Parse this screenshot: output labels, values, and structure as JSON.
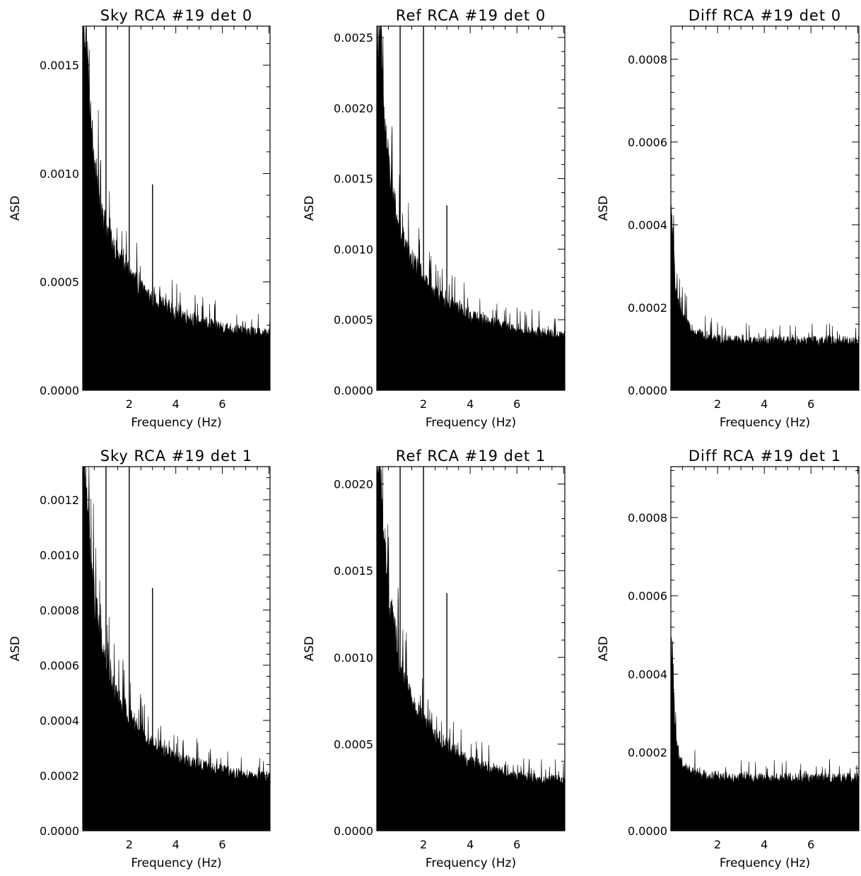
{
  "figure": {
    "background": "#ffffff",
    "ink": "#000000"
  },
  "chart_data": [
    {
      "type": "bar",
      "title": "Sky RCA #19 det 0",
      "xlabel": "Frequency (Hz)",
      "ylabel": "ASD",
      "xlim": [
        0,
        8.05
      ],
      "ylim": [
        0,
        0.00168
      ],
      "xticks": [
        2,
        4,
        6
      ],
      "xtick_labels": [
        "2",
        "4",
        "6"
      ],
      "yticks": [
        0,
        0.0005,
        0.001,
        0.0015
      ],
      "ytick_labels": [
        "0.0000",
        "0.0005",
        "0.0010",
        "0.0015"
      ],
      "x": [
        0.05,
        0.15,
        0.3,
        0.5,
        0.75,
        1.0,
        1.5,
        2.0,
        2.5,
        3.0,
        3.5,
        4.0,
        4.5,
        5.0,
        5.5,
        6.0,
        6.5,
        7.0,
        7.5,
        8.0
      ],
      "y": [
        0.00168,
        0.00168,
        0.00128,
        0.00105,
        0.00088,
        0.00075,
        0.00062,
        0.00054,
        0.00047,
        0.00042,
        0.00039,
        0.00036,
        0.00034,
        0.00032,
        0.000305,
        0.00029,
        0.00028,
        0.00027,
        0.000265,
        0.00026
      ],
      "spikes": [
        {
          "x": 1.0,
          "y": 0.00168
        },
        {
          "x": 2.0,
          "y": 0.00168
        },
        {
          "x": 3.0,
          "y": 0.00095
        }
      ]
    },
    {
      "type": "bar",
      "title": "Ref RCA #19 det 0",
      "xlabel": "Frequency (Hz)",
      "ylabel": "ASD",
      "xlim": [
        0,
        8.05
      ],
      "ylim": [
        0,
        0.00258
      ],
      "xticks": [
        2,
        4,
        6
      ],
      "xtick_labels": [
        "2",
        "4",
        "6"
      ],
      "yticks": [
        0,
        0.0005,
        0.001,
        0.0015,
        0.002,
        0.0025
      ],
      "ytick_labels": [
        "0.0000",
        "0.0005",
        "0.0010",
        "0.0015",
        "0.0020",
        "0.0025"
      ],
      "x": [
        0.05,
        0.15,
        0.3,
        0.5,
        0.75,
        1.0,
        1.5,
        2.0,
        2.5,
        3.0,
        3.5,
        4.0,
        4.5,
        5.0,
        5.5,
        6.0,
        6.5,
        7.0,
        7.5,
        8.0
      ],
      "y": [
        0.00258,
        0.00258,
        0.00195,
        0.0016,
        0.00132,
        0.00112,
        0.00092,
        0.0008,
        0.0007,
        0.00063,
        0.00058,
        0.00053,
        0.0005,
        0.00047,
        0.00045,
        0.00043,
        0.00042,
        0.00041,
        0.0004,
        0.00039
      ],
      "spikes": [
        {
          "x": 1.0,
          "y": 0.00258
        },
        {
          "x": 2.0,
          "y": 0.00258
        },
        {
          "x": 3.0,
          "y": 0.00131
        }
      ]
    },
    {
      "type": "bar",
      "title": "Diff RCA #19 det 0",
      "xlabel": "Frequency (Hz)",
      "ylabel": "ASD",
      "xlim": [
        0,
        8.05
      ],
      "ylim": [
        0,
        0.00088
      ],
      "xticks": [
        2,
        4,
        6
      ],
      "xtick_labels": [
        "2",
        "4",
        "6"
      ],
      "yticks": [
        0,
        0.0002,
        0.0004,
        0.0006,
        0.0008
      ],
      "ytick_labels": [
        "0.0000",
        "0.0002",
        "0.0004",
        "0.0006",
        "0.0008"
      ],
      "x": [
        0.05,
        0.1,
        0.2,
        0.35,
        0.5,
        0.75,
        1.0,
        1.5,
        2.0,
        3.0,
        4.0,
        5.0,
        6.0,
        7.0,
        8.0
      ],
      "y": [
        0.00042,
        0.00035,
        0.00026,
        0.0002,
        0.00018,
        0.00016,
        0.000145,
        0.00013,
        0.000125,
        0.00012,
        0.00012,
        0.00012,
        0.00012,
        0.00012,
        0.00012
      ],
      "spikes": []
    },
    {
      "type": "bar",
      "title": "Sky RCA #19 det 1",
      "xlabel": "Frequency (Hz)",
      "ylabel": "ASD",
      "xlim": [
        0,
        8.05
      ],
      "ylim": [
        0,
        0.00132
      ],
      "xticks": [
        2,
        4,
        6
      ],
      "xtick_labels": [
        "2",
        "4",
        "6"
      ],
      "yticks": [
        0,
        0.0002,
        0.0004,
        0.0006,
        0.0008,
        0.001,
        0.0012
      ],
      "ytick_labels": [
        "0.0000",
        "0.0002",
        "0.0004",
        "0.0006",
        "0.0008",
        "0.0010",
        "0.0012"
      ],
      "x": [
        0.05,
        0.15,
        0.3,
        0.5,
        0.75,
        1.0,
        1.5,
        2.0,
        2.5,
        3.0,
        3.5,
        4.0,
        4.5,
        5.0,
        5.5,
        6.0,
        6.5,
        7.0,
        7.5,
        8.0
      ],
      "y": [
        0.00132,
        0.00132,
        0.00105,
        0.00085,
        0.0007,
        0.0006,
        0.00048,
        0.00042,
        0.00036,
        0.00032,
        0.00029,
        0.00027,
        0.00025,
        0.00024,
        0.00023,
        0.00022,
        0.00021,
        0.000205,
        0.0002,
        0.0002
      ],
      "spikes": [
        {
          "x": 1.0,
          "y": 0.00132
        },
        {
          "x": 2.0,
          "y": 0.00132
        },
        {
          "x": 3.0,
          "y": 0.00088
        }
      ]
    },
    {
      "type": "bar",
      "title": "Ref RCA #19 det 1",
      "xlabel": "Frequency (Hz)",
      "ylabel": "ASD",
      "xlim": [
        0,
        8.05
      ],
      "ylim": [
        0,
        0.0021
      ],
      "xticks": [
        2,
        4,
        6
      ],
      "xtick_labels": [
        "2",
        "4",
        "6"
      ],
      "yticks": [
        0,
        0.0005,
        0.001,
        0.0015,
        0.002
      ],
      "ytick_labels": [
        "0.0000",
        "0.0005",
        "0.0010",
        "0.0015",
        "0.0020"
      ],
      "x": [
        0.05,
        0.15,
        0.3,
        0.5,
        0.75,
        1.0,
        1.5,
        2.0,
        2.5,
        3.0,
        3.5,
        4.0,
        4.5,
        5.0,
        5.5,
        6.0,
        6.5,
        7.0,
        7.5,
        8.0
      ],
      "y": [
        0.0021,
        0.0021,
        0.0017,
        0.00138,
        0.00115,
        0.00095,
        0.00076,
        0.00065,
        0.00055,
        0.00049,
        0.00044,
        0.0004,
        0.00038,
        0.00036,
        0.00034,
        0.00032,
        0.00031,
        0.0003,
        0.0003,
        0.00029
      ],
      "spikes": [
        {
          "x": 1.0,
          "y": 0.0021
        },
        {
          "x": 2.0,
          "y": 0.0021
        },
        {
          "x": 3.0,
          "y": 0.00137
        }
      ]
    },
    {
      "type": "bar",
      "title": "Diff RCA #19 det 1",
      "xlabel": "Frequency (Hz)",
      "ylabel": "ASD",
      "xlim": [
        0,
        8.05
      ],
      "ylim": [
        0,
        0.00093
      ],
      "xticks": [
        2,
        4,
        6
      ],
      "xtick_labels": [
        "2",
        "4",
        "6"
      ],
      "yticks": [
        0,
        0.0002,
        0.0004,
        0.0006,
        0.0008
      ],
      "ytick_labels": [
        "0.0000",
        "0.0002",
        "0.0004",
        "0.0006",
        "0.0008"
      ],
      "x": [
        0.05,
        0.1,
        0.2,
        0.35,
        0.5,
        0.75,
        1.0,
        1.5,
        2.0,
        3.0,
        4.0,
        5.0,
        6.0,
        7.0,
        8.0
      ],
      "y": [
        0.00046,
        0.00036,
        0.00025,
        0.00019,
        0.00017,
        0.000155,
        0.00015,
        0.00014,
        0.00014,
        0.000135,
        0.000135,
        0.000135,
        0.000135,
        0.000135,
        0.000135
      ],
      "spikes": []
    }
  ]
}
